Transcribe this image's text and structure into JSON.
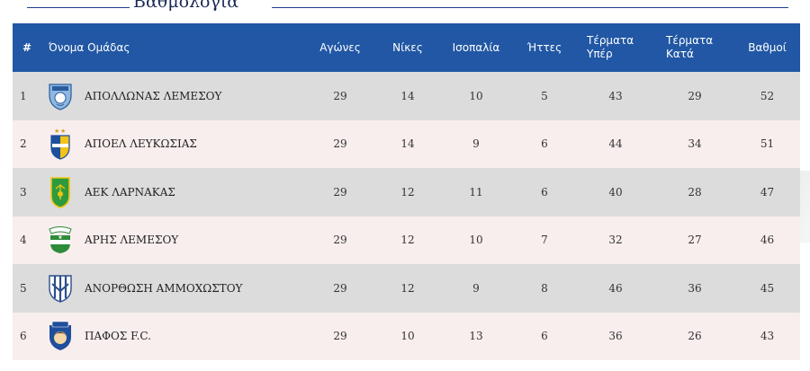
{
  "section": {
    "title": "Βαθμολογία"
  },
  "table": {
    "headers": {
      "rank": "#",
      "team": "Όνομα Ομάδας",
      "played": "Αγώνες",
      "wins": "Νίκες",
      "draws": "Ισοπαλία",
      "losses": "Ήττες",
      "goals_for": "Τέρματα Υπέρ",
      "goals_against": "Τέρματα Κατά",
      "points": "Βαθμοί"
    },
    "rows": [
      {
        "rank": "1",
        "team": "ΑΠΟΛΛΩΝΑΣ ΛΕΜΕΣΟΥ",
        "crest": "apollon-crest-icon",
        "played": "29",
        "wins": "14",
        "draws": "10",
        "losses": "5",
        "goals_for": "43",
        "goals_against": "29",
        "points": "52"
      },
      {
        "rank": "2",
        "team": "ΑΠΟΕΛ ΛΕΥΚΩΣΙΑΣ",
        "crest": "apoel-crest-icon",
        "played": "29",
        "wins": "14",
        "draws": "9",
        "losses": "6",
        "goals_for": "44",
        "goals_against": "34",
        "points": "51"
      },
      {
        "rank": "3",
        "team": "ΑΕΚ ΛΑΡΝΑΚΑΣ",
        "crest": "aek-crest-icon",
        "played": "29",
        "wins": "12",
        "draws": "11",
        "losses": "6",
        "goals_for": "40",
        "goals_against": "28",
        "points": "47"
      },
      {
        "rank": "4",
        "team": "ΑΡΗΣ ΛΕΜΕΣΟΥ",
        "crest": "aris-crest-icon",
        "played": "29",
        "wins": "12",
        "draws": "10",
        "losses": "7",
        "goals_for": "32",
        "goals_against": "27",
        "points": "46"
      },
      {
        "rank": "5",
        "team": "ΑΝΟΡΘΩΣΗ ΑΜΜΟΧΩΣΤΟΥ",
        "crest": "anorthosis-crest-icon",
        "played": "29",
        "wins": "12",
        "draws": "9",
        "losses": "8",
        "goals_for": "46",
        "goals_against": "36",
        "points": "45"
      },
      {
        "rank": "6",
        "team": "ΠΑΦΟΣ F.C.",
        "crest": "pafos-crest-icon",
        "played": "29",
        "wins": "10",
        "draws": "13",
        "losses": "6",
        "goals_for": "36",
        "goals_against": "26",
        "points": "43"
      }
    ]
  },
  "colors": {
    "header_bg": "#2157a4",
    "row_odd": "#dcdcdc",
    "row_even": "#f8eeee",
    "title_line": "#1a3f8a"
  }
}
